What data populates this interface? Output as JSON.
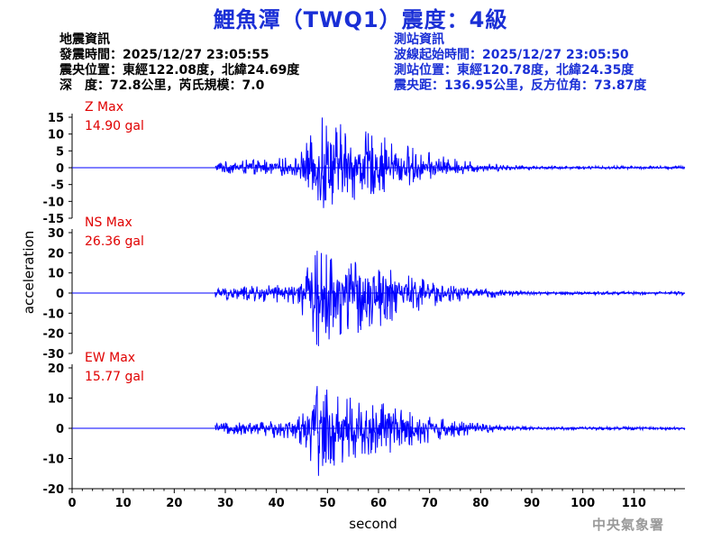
{
  "title": "鯉魚潭（TWQ1）震度：4級",
  "event_info": {
    "heading": "地震資訊",
    "time": "發震時間：2025/12/27 23:05:55",
    "epicenter": "震央位置：東經122.08度，北緯24.69度",
    "depth_magnitude": "深　度：72.8公里，芮氏規模：7.0"
  },
  "station_info": {
    "heading": "測站資訊",
    "onset": "波線起始時間：2025/12/27 23:05:50",
    "location": "測站位置：東經120.78度，北緯24.35度",
    "distance": "震央距：136.95公里，反方位角：73.87度"
  },
  "footer": "中央氣象署",
  "colors": {
    "title": "#1a2fd6",
    "trace": "#0000ff",
    "max_label": "#e00000",
    "station_text": "#1a2fd6"
  },
  "chart_data": {
    "type": "line",
    "xlabel": "second",
    "ylabel": "acceleration",
    "xlim": [
      0,
      120
    ],
    "x_ticks": [
      0,
      10,
      20,
      30,
      40,
      50,
      60,
      70,
      80,
      90,
      100,
      110
    ],
    "grid": false,
    "panels": [
      {
        "name": "Z",
        "max_label": "Z Max",
        "max_value": "14.90 gal",
        "ylim": [
          -15,
          15
        ],
        "y_ticks": [
          -15,
          -10,
          -5,
          0,
          5,
          10,
          15
        ],
        "onset_s": 28,
        "peak_s": 49,
        "peak_gal": 14.9,
        "trough_gal": -12
      },
      {
        "name": "NS",
        "max_label": "NS Max",
        "max_value": "26.36 gal",
        "ylim": [
          -30,
          30
        ],
        "y_ticks": [
          -30,
          -20,
          -10,
          0,
          10,
          20,
          30
        ],
        "onset_s": 28,
        "peak_s": 48,
        "peak_gal": 21,
        "trough_gal": -26.36
      },
      {
        "name": "EW",
        "max_label": "EW Max",
        "max_value": "15.77 gal",
        "ylim": [
          -20,
          20
        ],
        "y_ticks": [
          -20,
          -10,
          0,
          10,
          20
        ],
        "onset_s": 28,
        "peak_s": 48,
        "peak_gal": 14,
        "trough_gal": -15.77
      }
    ]
  }
}
